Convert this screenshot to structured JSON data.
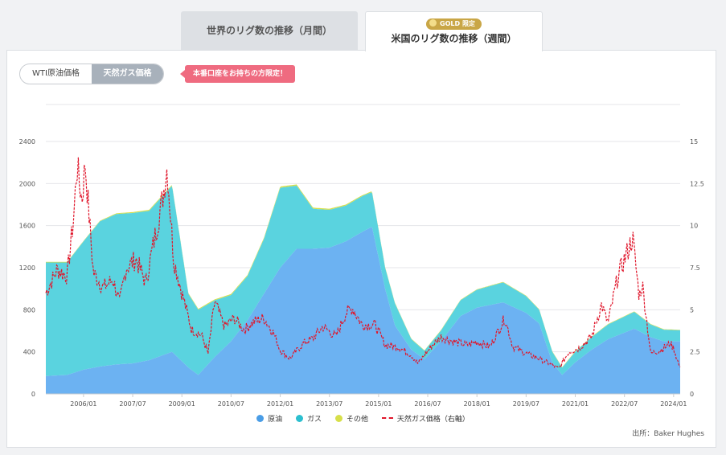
{
  "tabs": {
    "monthly_label": "世界のリグ数の推移（月間）",
    "weekly_label": "米国のリグ数の推移（週間）",
    "gold_badge": "GOLD 限定"
  },
  "toggle": {
    "wti_label": "WTI原油価格",
    "gas_label": "天然ガス価格"
  },
  "notice": "本番口座をお持ちの方限定！",
  "source": "出所：Baker Hughes",
  "colors": {
    "oil": "#6cb2f2",
    "gas": "#5ad3df",
    "other": "#d7df4a",
    "price": "#e0162b"
  },
  "chart_data": {
    "type": "area",
    "stacked": true,
    "x_tick_labels": [
      "2006/01",
      "2007/07",
      "2009/01",
      "2010/07",
      "2012/01",
      "2013/07",
      "2015/01",
      "2016/07",
      "2018/01",
      "2019/07",
      "2021/01",
      "2022/07",
      "2024/01"
    ],
    "x_tick_years": [
      2006.0,
      2007.5,
      2009.0,
      2010.5,
      2012.0,
      2013.5,
      2015.0,
      2016.5,
      2018.0,
      2019.5,
      2021.0,
      2022.5,
      2024.0
    ],
    "xlim": [
      2004.85,
      2024.2
    ],
    "y_left": {
      "ticks": [
        0,
        400,
        800,
        1200,
        1600,
        2000,
        2400
      ],
      "range": [
        0,
        2400
      ]
    },
    "y_right": {
      "ticks": [
        0,
        2.5,
        5,
        7.5,
        10,
        12.5,
        15
      ],
      "tick_labels": [
        "0",
        "2.5",
        "5",
        "7.5",
        "10",
        "12.5",
        "15"
      ],
      "range": [
        0,
        15
      ]
    },
    "series": [
      {
        "name": "原油",
        "points": [
          [
            2004.85,
            170
          ],
          [
            2005.5,
            180
          ],
          [
            2006,
            230
          ],
          [
            2006.5,
            260
          ],
          [
            2007,
            280
          ],
          [
            2007.5,
            290
          ],
          [
            2008,
            320
          ],
          [
            2008.7,
            400
          ],
          [
            2009.2,
            250
          ],
          [
            2009.5,
            180
          ],
          [
            2010,
            350
          ],
          [
            2010.5,
            500
          ],
          [
            2011,
            700
          ],
          [
            2011.5,
            950
          ],
          [
            2012,
            1200
          ],
          [
            2012.5,
            1380
          ],
          [
            2013,
            1380
          ],
          [
            2013.5,
            1390
          ],
          [
            2014,
            1450
          ],
          [
            2014.5,
            1540
          ],
          [
            2014.8,
            1590
          ],
          [
            2015.2,
            1000
          ],
          [
            2015.5,
            650
          ],
          [
            2016,
            420
          ],
          [
            2016.4,
            330
          ],
          [
            2016.9,
            500
          ],
          [
            2017.5,
            740
          ],
          [
            2018,
            820
          ],
          [
            2018.8,
            870
          ],
          [
            2019.5,
            770
          ],
          [
            2019.9,
            670
          ],
          [
            2020.3,
            300
          ],
          [
            2020.6,
            180
          ],
          [
            2021,
            300
          ],
          [
            2021.5,
            420
          ],
          [
            2022,
            520
          ],
          [
            2022.8,
            620
          ],
          [
            2023.3,
            540
          ],
          [
            2023.7,
            500
          ],
          [
            2024.2,
            500
          ]
        ]
      },
      {
        "name": "ガス",
        "points": [
          [
            2004.85,
            1080
          ],
          [
            2005.5,
            1070
          ],
          [
            2006,
            1220
          ],
          [
            2006.5,
            1380
          ],
          [
            2007,
            1430
          ],
          [
            2007.5,
            1430
          ],
          [
            2008,
            1420
          ],
          [
            2008.7,
            1580
          ],
          [
            2009.2,
            700
          ],
          [
            2009.5,
            620
          ],
          [
            2010,
            540
          ],
          [
            2010.5,
            440
          ],
          [
            2011,
            420
          ],
          [
            2011.5,
            520
          ],
          [
            2012,
            760
          ],
          [
            2012.5,
            600
          ],
          [
            2013,
            380
          ],
          [
            2013.5,
            360
          ],
          [
            2014,
            340
          ],
          [
            2014.5,
            340
          ],
          [
            2014.8,
            330
          ],
          [
            2015.2,
            200
          ],
          [
            2015.5,
            210
          ],
          [
            2016,
            100
          ],
          [
            2016.4,
            80
          ],
          [
            2016.9,
            100
          ],
          [
            2017.5,
            150
          ],
          [
            2018,
            170
          ],
          [
            2018.8,
            190
          ],
          [
            2019.5,
            160
          ],
          [
            2019.9,
            130
          ],
          [
            2020.3,
            100
          ],
          [
            2020.6,
            70
          ],
          [
            2021,
            100
          ],
          [
            2021.5,
            120
          ],
          [
            2022,
            140
          ],
          [
            2022.8,
            160
          ],
          [
            2023.3,
            120
          ],
          [
            2023.7,
            110
          ],
          [
            2024.2,
            105
          ]
        ]
      },
      {
        "name": "その他",
        "points": [
          [
            2004.85,
            5
          ],
          [
            2006,
            5
          ],
          [
            2008,
            10
          ],
          [
            2009.2,
            8
          ],
          [
            2011,
            10
          ],
          [
            2012,
            12
          ],
          [
            2014,
            10
          ],
          [
            2016,
            5
          ],
          [
            2018,
            5
          ],
          [
            2020,
            5
          ],
          [
            2022,
            5
          ],
          [
            2024.2,
            5
          ]
        ]
      },
      {
        "name": "天然ガス価格（右軸）",
        "axis": "right",
        "points": [
          [
            2004.85,
            6.0
          ],
          [
            2005.2,
            7.4
          ],
          [
            2005.5,
            7.0
          ],
          [
            2005.7,
            10.5
          ],
          [
            2005.8,
            13.6
          ],
          [
            2005.95,
            11.5
          ],
          [
            2006.05,
            13.7
          ],
          [
            2006.3,
            7.2
          ],
          [
            2006.6,
            6.3
          ],
          [
            2006.9,
            6.8
          ],
          [
            2007.1,
            5.4
          ],
          [
            2007.3,
            7.5
          ],
          [
            2007.6,
            8.0
          ],
          [
            2007.9,
            6.6
          ],
          [
            2008.1,
            8.6
          ],
          [
            2008.4,
            11.5
          ],
          [
            2008.55,
            13.5
          ],
          [
            2008.75,
            8.0
          ],
          [
            2009.0,
            6.0
          ],
          [
            2009.3,
            3.8
          ],
          [
            2009.6,
            3.5
          ],
          [
            2009.8,
            2.4
          ],
          [
            2010.0,
            5.5
          ],
          [
            2010.3,
            4.0
          ],
          [
            2010.6,
            4.5
          ],
          [
            2010.9,
            3.8
          ],
          [
            2011.2,
            4.3
          ],
          [
            2011.5,
            4.5
          ],
          [
            2011.8,
            3.6
          ],
          [
            2012.0,
            2.6
          ],
          [
            2012.3,
            2.1
          ],
          [
            2012.7,
            3.0
          ],
          [
            2013.0,
            3.3
          ],
          [
            2013.3,
            4.0
          ],
          [
            2013.7,
            3.4
          ],
          [
            2014.0,
            4.8
          ],
          [
            2014.2,
            5.1
          ],
          [
            2014.5,
            4.1
          ],
          [
            2014.9,
            4.1
          ],
          [
            2015.2,
            2.9
          ],
          [
            2015.6,
            2.8
          ],
          [
            2016.0,
            2.3
          ],
          [
            2016.2,
            1.8
          ],
          [
            2016.6,
            2.8
          ],
          [
            2016.9,
            3.4
          ],
          [
            2017.3,
            3.1
          ],
          [
            2017.7,
            2.9
          ],
          [
            2018.0,
            3.1
          ],
          [
            2018.4,
            2.8
          ],
          [
            2018.85,
            4.5
          ],
          [
            2019.1,
            2.8
          ],
          [
            2019.5,
            2.4
          ],
          [
            2019.9,
            2.1
          ],
          [
            2020.2,
            1.8
          ],
          [
            2020.5,
            1.5
          ],
          [
            2020.8,
            2.5
          ],
          [
            2021.1,
            2.7
          ],
          [
            2021.5,
            3.4
          ],
          [
            2021.8,
            5.3
          ],
          [
            2022.0,
            4.2
          ],
          [
            2022.3,
            7.0
          ],
          [
            2022.6,
            8.5
          ],
          [
            2022.75,
            9.3
          ],
          [
            2022.95,
            5.8
          ],
          [
            2023.05,
            6.5
          ],
          [
            2023.3,
            2.4
          ],
          [
            2023.6,
            2.6
          ],
          [
            2023.9,
            3.0
          ],
          [
            2024.0,
            2.7
          ],
          [
            2024.2,
            1.5
          ]
        ]
      }
    ]
  }
}
